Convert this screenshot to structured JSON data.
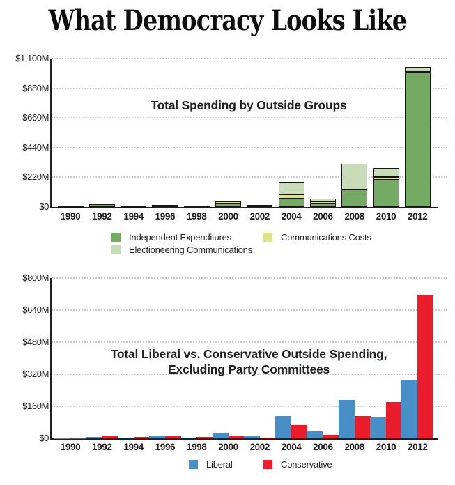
{
  "page": {
    "title": "What Democracy Looks Like"
  },
  "colors": {
    "independent_expenditures": "#74aa63",
    "communications_costs": "#dde28c",
    "electioneering_communications": "#c9dcb9",
    "liberal": "#478fc6",
    "conservative": "#e91d2c",
    "axis": "#231f20",
    "gridline": "#cccccc",
    "text": "#231f20"
  },
  "chart_data": [
    {
      "type": "bar",
      "variant": "stacked",
      "title": "Total Spending by Outside Groups",
      "categories": [
        "1990",
        "1992",
        "1994",
        "1996",
        "1998",
        "2000",
        "2002",
        "2004",
        "2006",
        "2008",
        "2010",
        "2012"
      ],
      "series": [
        {
          "name": "Independent Expenditures",
          "color_key": "independent_expenditures",
          "values": [
            3,
            20,
            4,
            18,
            12,
            26,
            15,
            60,
            28,
            130,
            200,
            995
          ]
        },
        {
          "name": "Communications Costs",
          "color_key": "communications_costs",
          "values": [
            0,
            0,
            0,
            0,
            0,
            13,
            0,
            33,
            12,
            0,
            20,
            6
          ]
        },
        {
          "name": "Electioneering Communications",
          "color_key": "electioneering_communications",
          "values": [
            0,
            0,
            0,
            0,
            0,
            0,
            0,
            92,
            20,
            190,
            70,
            39
          ]
        }
      ],
      "units": "millions USD",
      "ylim": [
        0,
        1100
      ],
      "yticks": [
        {
          "label": "$1,100M",
          "value": 1100
        },
        {
          "label": "$880M",
          "value": 880
        },
        {
          "label": "$660M",
          "value": 660
        },
        {
          "label": "$440M",
          "value": 440
        },
        {
          "label": "$220M",
          "value": 220
        },
        {
          "label": "$0",
          "value": 0
        }
      ],
      "grid": "horizontal-dotted",
      "legend_position": "below"
    },
    {
      "type": "bar",
      "variant": "grouped",
      "title_lines": [
        "Total Liberal vs. Conservative Outside Spending,",
        "Excluding Party Committees"
      ],
      "categories": [
        "1990",
        "1992",
        "1994",
        "1996",
        "1998",
        "2000",
        "2002",
        "2004",
        "2006",
        "2008",
        "2010",
        "2012"
      ],
      "series": [
        {
          "name": "Liberal",
          "color_key": "liberal",
          "values": [
            1,
            8,
            2,
            15,
            5,
            28,
            15,
            112,
            34,
            192,
            104,
            292
          ]
        },
        {
          "name": "Conservative",
          "color_key": "conservative",
          "values": [
            1,
            11,
            8,
            9,
            6,
            15,
            5,
            66,
            16,
            110,
            182,
            717
          ]
        }
      ],
      "units": "millions USD",
      "ylim": [
        0,
        800
      ],
      "yticks": [
        {
          "label": "$800M",
          "value": 800
        },
        {
          "label": "$640M",
          "value": 640
        },
        {
          "label": "$480M",
          "value": 480
        },
        {
          "label": "$320M",
          "value": 320
        },
        {
          "label": "$160M",
          "value": 160
        },
        {
          "label": "$0",
          "value": 0
        }
      ],
      "grid": "horizontal-dotted",
      "legend_position": "below"
    }
  ]
}
